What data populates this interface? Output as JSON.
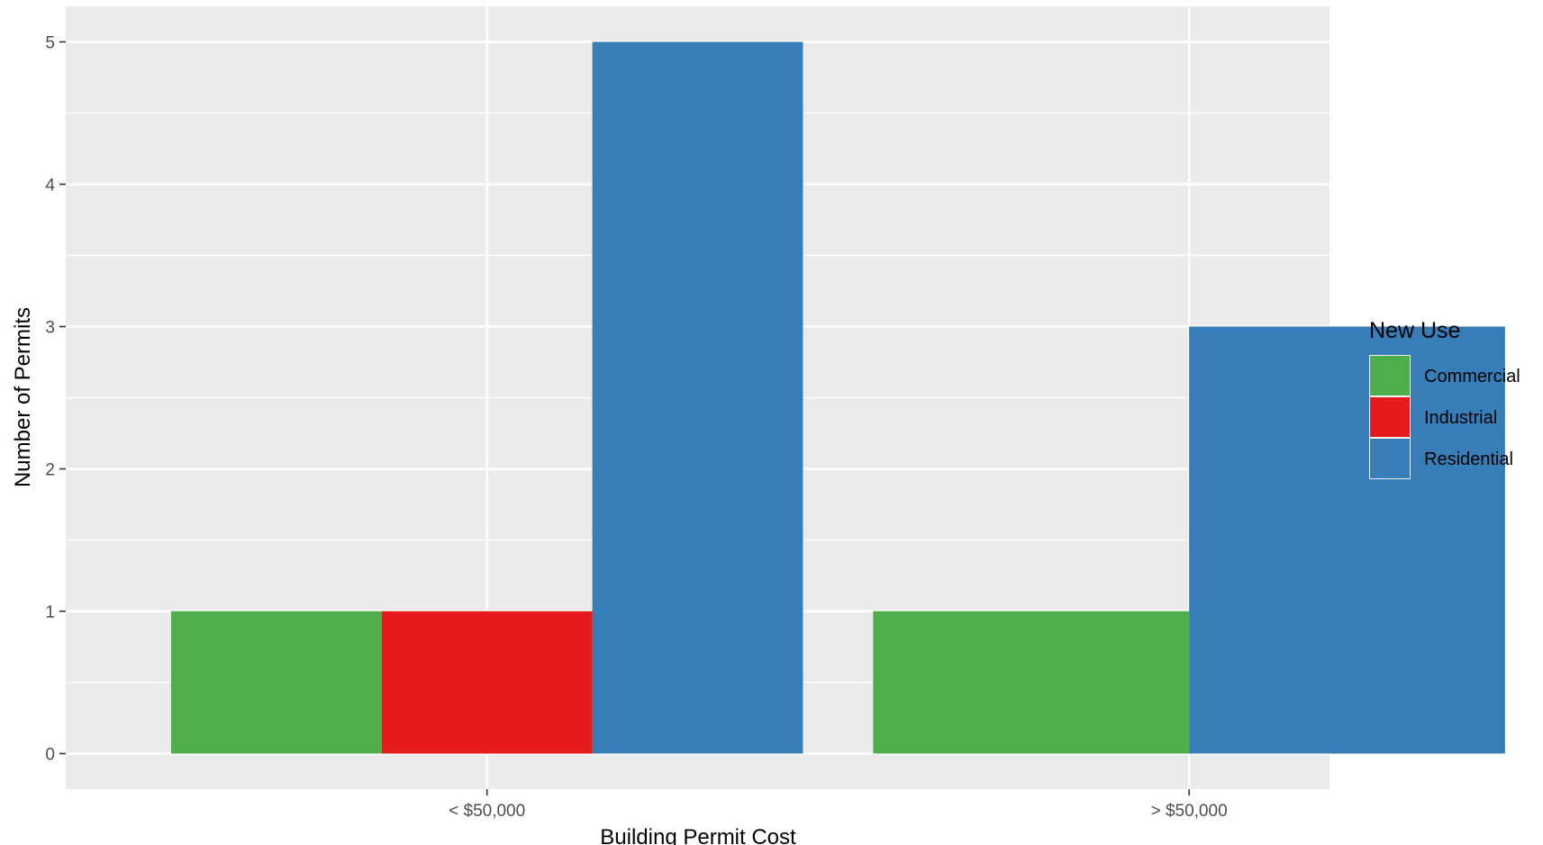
{
  "chart_data": {
    "type": "bar",
    "layout": "dodge",
    "categories": [
      "< $50,000",
      "> $50,000"
    ],
    "series": [
      {
        "name": "Commercial",
        "color": "#4daf4a",
        "values": [
          1,
          1
        ]
      },
      {
        "name": "Industrial",
        "color": "#e41a1c",
        "values": [
          1,
          null
        ]
      },
      {
        "name": "Residential",
        "color": "#377eb8",
        "values": [
          5,
          3
        ]
      }
    ],
    "title": "",
    "xlabel": "Building Permit Cost",
    "ylabel": "Number of Permits",
    "ylim": [
      -0.25,
      5.25
    ],
    "yticks": [
      0,
      1,
      2,
      3,
      4,
      5
    ],
    "grid": true,
    "panel_background": "#ebebeb",
    "legend": {
      "title": "New Use",
      "position": "right"
    }
  }
}
